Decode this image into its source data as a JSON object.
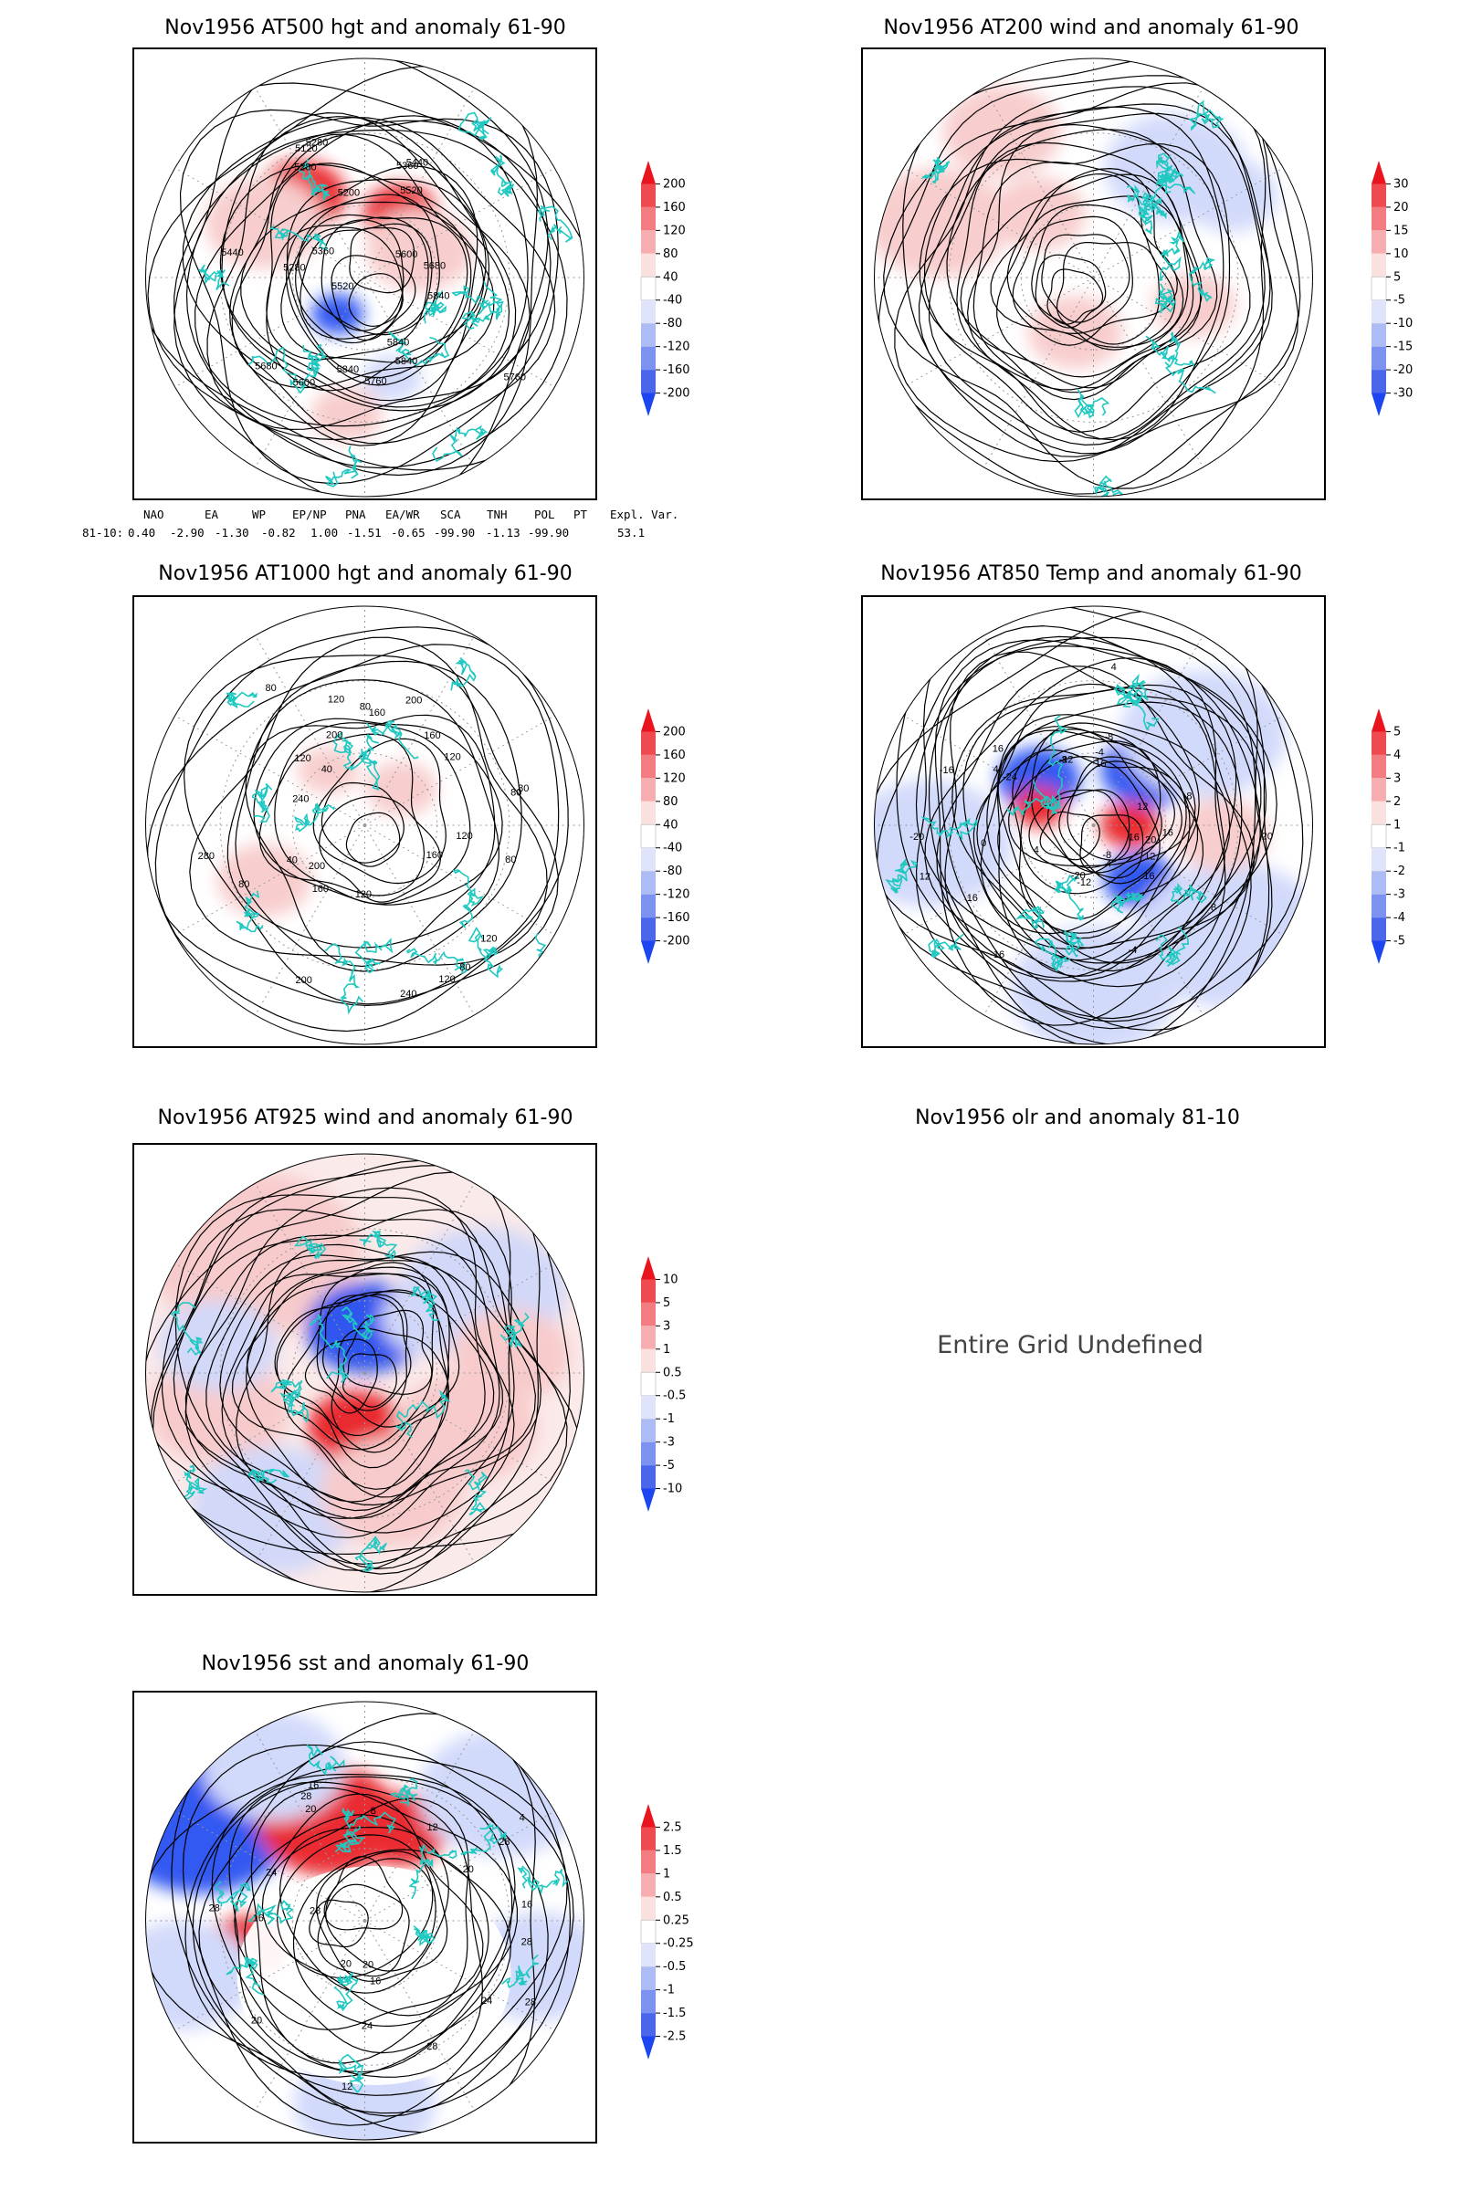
{
  "panels": [
    {
      "id": "p1",
      "title": "Nov1956 AT500 hgt and anomaly 61-90",
      "contour_labels": [
        "5840",
        "5840",
        "5840",
        "5840",
        "5760",
        "5680",
        "5600",
        "5520",
        "5440",
        "5360",
        "5280",
        "5280",
        "5200",
        "5120",
        "5280",
        "5360",
        "5440",
        "5520",
        "5600",
        "5680",
        "5760"
      ],
      "colorbar": [
        "200",
        "160",
        "120",
        "80",
        "40",
        "-40",
        "-80",
        "-120",
        "-160",
        "-200"
      ]
    },
    {
      "id": "p2",
      "title": "Nov1956 AT200 wind and anomaly 61-90",
      "contour_labels": [],
      "colorbar": [
        "30",
        "20",
        "15",
        "10",
        "5",
        "-5",
        "-10",
        "-15",
        "-20",
        "-30"
      ]
    },
    {
      "id": "p3",
      "title": "Nov1956 AT1000 hgt and anomaly 61-90",
      "contour_labels": [
        "80",
        "120",
        "160",
        "120",
        "240",
        "200",
        "160",
        "120",
        "40",
        "80",
        "200",
        "280",
        "240",
        "40",
        "80",
        "120",
        "80",
        "120",
        "200",
        "160",
        "160",
        "200",
        "120",
        "80",
        "120",
        "80",
        "80"
      ],
      "colorbar": [
        "200",
        "160",
        "120",
        "80",
        "40",
        "-40",
        "-80",
        "-120",
        "-160",
        "-200"
      ]
    },
    {
      "id": "p4",
      "title": "Nov1956 AT850 Temp and anomaly 61-90",
      "contour_labels": [
        "16",
        "12",
        "8",
        "4",
        "-4",
        "-8",
        "-12",
        "-16",
        "-20",
        "12",
        "4",
        "0",
        "16",
        "-20",
        "-24",
        "-16",
        "4",
        "8",
        "16",
        "16",
        "-12",
        "-8",
        "-4",
        "4",
        "8",
        "12",
        "16",
        "20",
        "16",
        "20"
      ],
      "colorbar": [
        "5",
        "4",
        "3",
        "2",
        "1",
        "-1",
        "-2",
        "-3",
        "-4",
        "-5"
      ]
    },
    {
      "id": "p5",
      "title": "Nov1956 AT925 wind and anomaly 61-90",
      "contour_labels": [],
      "colorbar": [
        "10",
        "5",
        "3",
        "1",
        "0.5",
        "-0.5",
        "-1",
        "-3",
        "-5",
        "-10"
      ]
    },
    {
      "id": "p6",
      "title": "Nov1956 olr and anomaly 81-10",
      "message": "Entire Grid Undefined"
    },
    {
      "id": "p7",
      "title": "Nov1956 sst and anomaly 61-90",
      "contour_labels": [
        "28",
        "24",
        "28",
        "24",
        "20",
        "16",
        "12",
        "20",
        "20",
        "16",
        "28",
        "28",
        "28",
        "24",
        "20",
        "16",
        "12",
        "8",
        "4",
        "20",
        "16",
        "28",
        "28"
      ],
      "colorbar": [
        "2.5",
        "1.5",
        "1",
        "0.5",
        "0.25",
        "-0.25",
        "-0.5",
        "-1",
        "-1.5",
        "-2.5"
      ]
    }
  ],
  "teleconnection": {
    "headers": [
      "NAO",
      "EA",
      "WP",
      "EP/NP",
      "PNA",
      "EA/WR",
      "SCA",
      "TNH",
      "POL",
      "PT",
      "Expl. Var."
    ],
    "row_label": "81-10:",
    "values": [
      "0.40",
      "-2.90",
      "-1.30",
      "-0.82",
      "1.00",
      "-1.51",
      "-0.65",
      "-99.90",
      "-1.13",
      "-99.90",
      "53.1"
    ]
  },
  "colors": {
    "coast": "#1fc8c0",
    "red_strong": "#e8141e",
    "red_light": "#f7c8c8",
    "blue_strong": "#1e46f0",
    "blue_light": "#cdd6fa",
    "contour": "#000000"
  }
}
